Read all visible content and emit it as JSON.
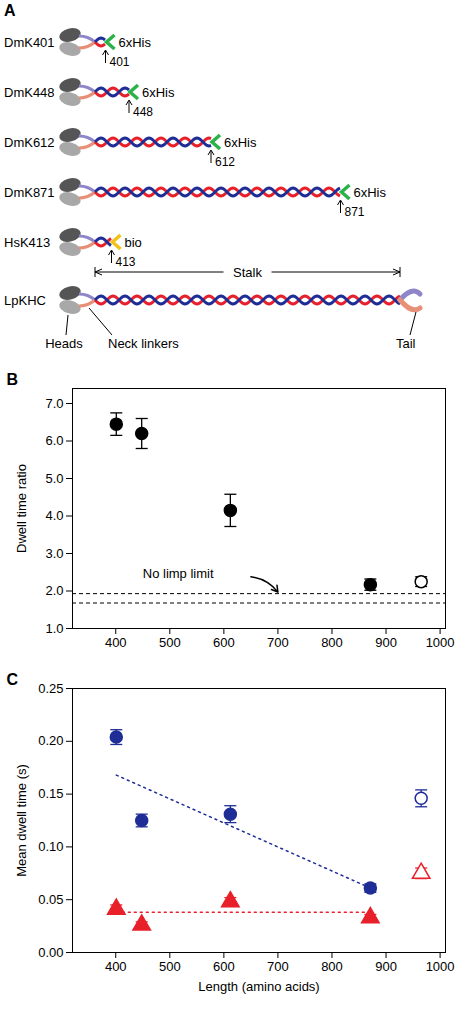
{
  "diagram": {
    "panel_label": "A",
    "constructs": [
      {
        "name": "DmK401",
        "end": 401,
        "tag": "6xHis"
      },
      {
        "name": "DmK448",
        "end": 448,
        "tag": "6xHis"
      },
      {
        "name": "DmK612",
        "end": 612,
        "tag": "6xHis"
      },
      {
        "name": "DmK871",
        "end": 871,
        "tag": "6xHis"
      },
      {
        "name": "HsK413",
        "end": 413,
        "tag": "bio"
      },
      {
        "name": "LpKHC"
      }
    ],
    "labels": {
      "stalk": "Stalk",
      "neck": "Neck linkers",
      "tail": "Tail",
      "heads": "Heads"
    }
  },
  "chart_data": [
    {
      "type": "scatter",
      "panel_label": "B",
      "y_label": "Dwell time ratio",
      "xlim": [
        320,
        1010
      ],
      "xticks": [
        400,
        500,
        600,
        700,
        800,
        900,
        1000
      ],
      "ylim": [
        1.0,
        7.4
      ],
      "yticks": [
        {
          "value": 1,
          "label": "1.0"
        },
        {
          "value": 2,
          "label": "2.0"
        },
        {
          "value": 3,
          "label": "3.0"
        },
        {
          "value": 4,
          "label": "4.0"
        },
        {
          "value": 5,
          "label": "5.0"
        },
        {
          "value": 6,
          "label": "6.0"
        },
        {
          "value": 7,
          "label": "7.0"
        }
      ],
      "grid": false,
      "series": [
        {
          "marker": "circle",
          "color": "#000000",
          "x": [
            401,
            448,
            612,
            871
          ],
          "values": [
            6.45,
            6.2,
            4.15,
            2.17
          ],
          "error": [
            0.3,
            0.4,
            0.43,
            0.15
          ]
        },
        {
          "marker": "open_circle",
          "color": "#000000",
          "x": [
            965
          ],
          "values": [
            2.25
          ],
          "error": [
            0.13
          ]
        }
      ],
      "reference_lines": [
        1.93,
        1.68
      ],
      "annotations": [
        {
          "text": "No limp limit",
          "x": 450,
          "y": 2.45,
          "arrow": {
            "x1": 650,
            "y1": 2.38,
            "x2": 700,
            "y2": 1.97
          }
        }
      ]
    },
    {
      "type": "scatter",
      "panel_label": "C",
      "x_label": "Length (amino acids)",
      "y_label": "Mean dwell time (s)",
      "xlim": [
        320,
        1010
      ],
      "xticks": [
        400,
        500,
        600,
        700,
        800,
        900,
        1000
      ],
      "ylim": [
        0,
        0.25
      ],
      "yticks": [
        {
          "value": 0,
          "label": "0.00"
        },
        {
          "value": 0.05,
          "label": "0.05"
        },
        {
          "value": 0.1,
          "label": "0.10"
        },
        {
          "value": 0.15,
          "label": "0.15"
        },
        {
          "value": 0.2,
          "label": "0.20"
        },
        {
          "value": 0.25,
          "label": "0.25"
        }
      ],
      "grid": false,
      "series": [
        {
          "type": "scatter",
          "marker": "circle",
          "color": "#1f2d96",
          "x": [
            401,
            448,
            612,
            871
          ],
          "values": [
            0.204,
            0.125,
            0.131,
            0.061
          ],
          "error": [
            0.007,
            0.006,
            0.008,
            0.004
          ]
        },
        {
          "type": "scatter",
          "marker": "open_circle",
          "color": "#1f2d96",
          "x": [
            965
          ],
          "values": [
            0.146
          ],
          "error": [
            0.008
          ]
        },
        {
          "type": "scatter",
          "marker": "triangle",
          "color": "#e8202a",
          "x": [
            401,
            448,
            612,
            871
          ],
          "values": [
            0.041,
            0.026,
            0.048,
            0.033
          ],
          "error": [
            0.004,
            0.003,
            0.004,
            0.003
          ]
        },
        {
          "type": "scatter",
          "marker": "open_triangle",
          "color": "#e8202a",
          "x": [
            965
          ],
          "values": [
            0.075
          ],
          "error": [
            0.005
          ]
        },
        {
          "type": "line",
          "line_style": "dotted",
          "color": "#1f2d96",
          "x": [
            401,
            871
          ],
          "values": [
            0.168,
            0.061
          ]
        },
        {
          "type": "line",
          "line_style": "dotted",
          "color": "#e8202a",
          "x": [
            401,
            871
          ],
          "values": [
            0.038,
            0.038
          ]
        }
      ]
    }
  ]
}
